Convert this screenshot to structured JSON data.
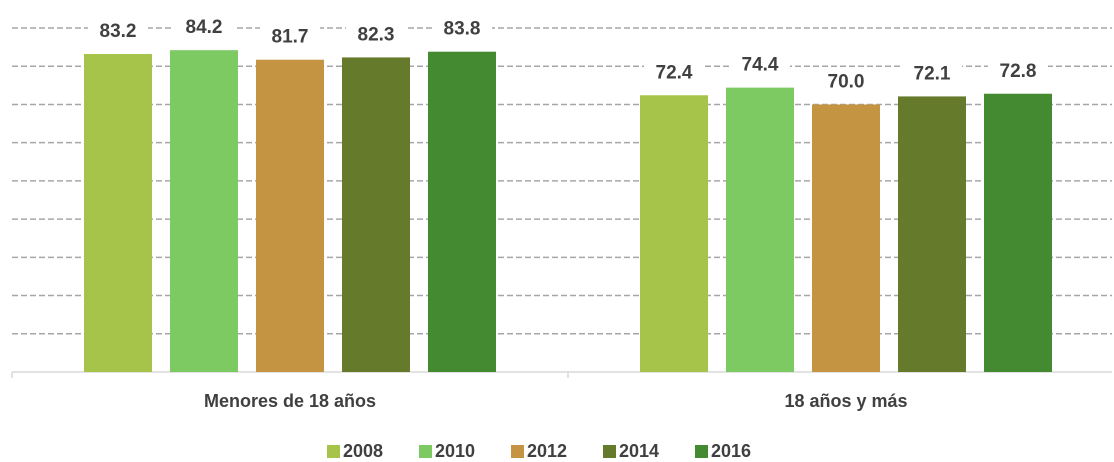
{
  "chart_data": {
    "type": "bar",
    "categories": [
      "Menores de 18 años",
      "18 años y más"
    ],
    "series": [
      {
        "name": "2008",
        "color": "#a7c44a",
        "values": [
          83.2,
          72.4
        ],
        "value_labels": [
          "83.2",
          "72.4"
        ]
      },
      {
        "name": "2010",
        "color": "#7dc962",
        "values": [
          84.2,
          74.4
        ],
        "value_labels": [
          "84.2",
          "74.4"
        ]
      },
      {
        "name": "2012",
        "color": "#c49442",
        "values": [
          81.7,
          70.0
        ],
        "value_labels": [
          "81.7",
          "70.0"
        ]
      },
      {
        "name": "2014",
        "color": "#657a2a",
        "values": [
          82.3,
          72.1
        ],
        "value_labels": [
          "82.3",
          "72.1"
        ]
      },
      {
        "name": "2016",
        "color": "#438a31",
        "values": [
          83.8,
          72.8
        ],
        "value_labels": [
          "83.8",
          "72.8"
        ]
      }
    ],
    "ylim": [
      0,
      90
    ],
    "yticks": [
      0,
      10,
      20,
      30,
      40,
      50,
      60,
      70,
      80,
      90
    ],
    "grid": true,
    "legend": "bottom"
  }
}
